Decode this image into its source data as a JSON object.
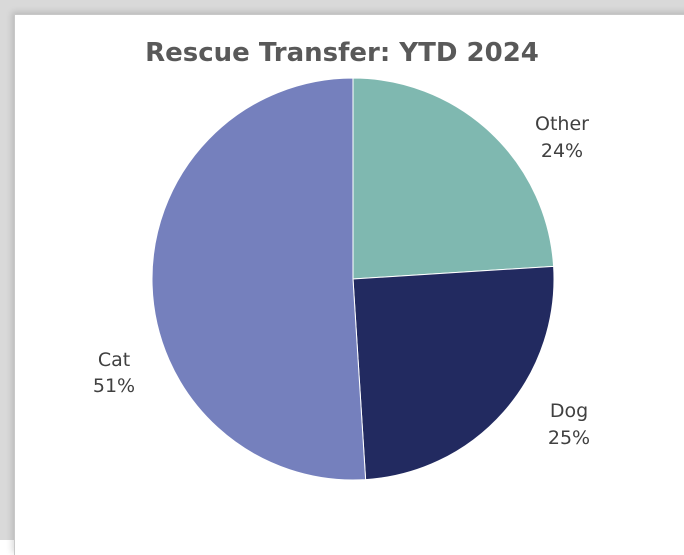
{
  "chart_data": {
    "type": "pie",
    "title": "Rescue Transfer: YTD 2024",
    "slices": [
      {
        "label": "Other",
        "percent_label": "24%",
        "value": 24,
        "color": "#7fb8b0"
      },
      {
        "label": "Dog",
        "percent_label": "25%",
        "value": 25,
        "color": "#222a60"
      },
      {
        "label": "Cat",
        "percent_label": "51%",
        "value": 51,
        "color": "#7580bd"
      }
    ],
    "legend": "none",
    "data_labels": "outside"
  }
}
